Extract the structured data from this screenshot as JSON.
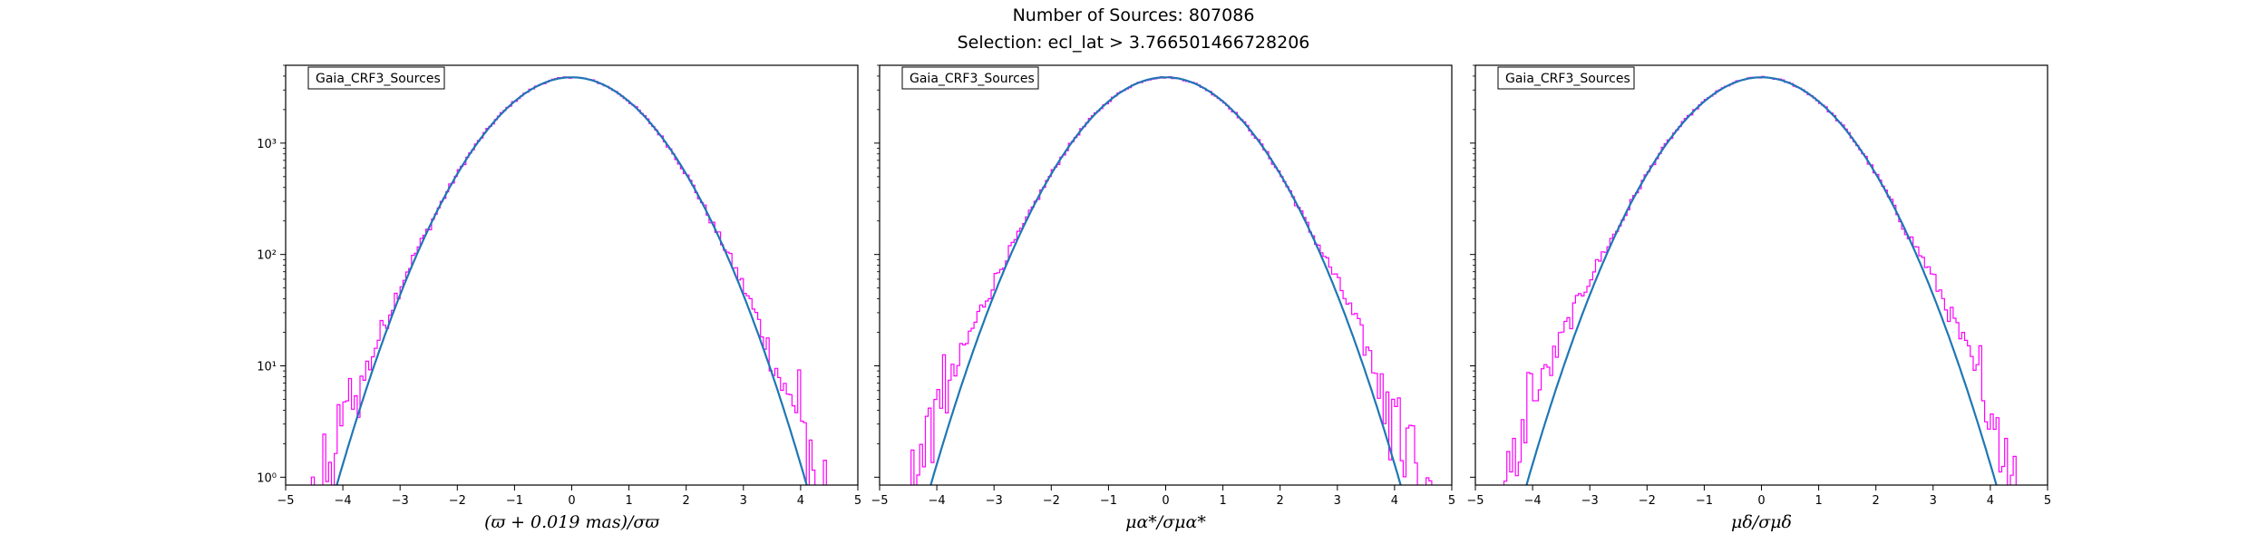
{
  "header": {
    "title": "Number of Sources: 807086",
    "subtitle": "Selection: ecl_lat > 3.766501466728206"
  },
  "colors": {
    "histogram": "#ff00ff",
    "fit_curve": "#1f77b4",
    "axes": "#000000"
  },
  "chart_data": [
    {
      "type": "line",
      "legend": "Gaia_CRF3_Sources",
      "legend_placement": "top-left",
      "xlabel": "(ϖ + 0.019 mas)/σϖ",
      "ylabel": "",
      "xlim": [
        -5,
        5
      ],
      "ylim": [
        0.85,
        5000
      ],
      "yscale": "log",
      "xticks": [
        -5,
        -4,
        -3,
        -2,
        -1,
        0,
        1,
        2,
        3,
        4,
        5
      ],
      "yticks": [
        {
          "value": 1,
          "label": "10⁰"
        },
        {
          "value": 10,
          "label": "10¹"
        },
        {
          "value": 100,
          "label": "10²"
        },
        {
          "value": 1000,
          "label": "10³"
        }
      ],
      "grid": false,
      "series": [
        {
          "kind": "histogram",
          "peak": 3900,
          "sigma": 1.0,
          "mean": 0.0,
          "tail_excess": 1.0
        },
        {
          "kind": "gaussian_fit",
          "peak": 3900,
          "sigma": 1.0,
          "mean": 0.0
        }
      ]
    },
    {
      "type": "line",
      "legend": "Gaia_CRF3_Sources",
      "legend_placement": "top-left",
      "xlabel": "μα*/σμα*",
      "ylabel": "",
      "xlim": [
        -5,
        5
      ],
      "ylim": [
        0.85,
        5000
      ],
      "yscale": "log",
      "xticks": [
        -5,
        -4,
        -3,
        -2,
        -1,
        0,
        1,
        2,
        3,
        4,
        5
      ],
      "yticks": [
        {
          "value": 1,
          "label": "10⁰"
        },
        {
          "value": 10,
          "label": "10¹"
        },
        {
          "value": 100,
          "label": "10²"
        },
        {
          "value": 1000,
          "label": "10³"
        }
      ],
      "grid": false,
      "series": [
        {
          "kind": "histogram",
          "peak": 3900,
          "sigma": 1.0,
          "mean": 0.0,
          "tail_excess": 1.6
        },
        {
          "kind": "gaussian_fit",
          "peak": 3900,
          "sigma": 1.0,
          "mean": 0.0
        }
      ]
    },
    {
      "type": "line",
      "legend": "Gaia_CRF3_Sources",
      "legend_placement": "top-left",
      "xlabel": "μδ/σμδ",
      "ylabel": "",
      "xlim": [
        -5,
        5
      ],
      "ylim": [
        0.85,
        5000
      ],
      "yscale": "log",
      "xticks": [
        -5,
        -4,
        -3,
        -2,
        -1,
        0,
        1,
        2,
        3,
        4,
        5
      ],
      "yticks": [
        {
          "value": 1,
          "label": "10⁰"
        },
        {
          "value": 10,
          "label": "10¹"
        },
        {
          "value": 100,
          "label": "10²"
        },
        {
          "value": 1000,
          "label": "10³"
        }
      ],
      "grid": false,
      "series": [
        {
          "kind": "histogram",
          "peak": 3900,
          "sigma": 1.0,
          "mean": 0.0,
          "tail_excess": 2.0
        },
        {
          "kind": "gaussian_fit",
          "peak": 3900,
          "sigma": 1.0,
          "mean": 0.0
        }
      ]
    }
  ]
}
